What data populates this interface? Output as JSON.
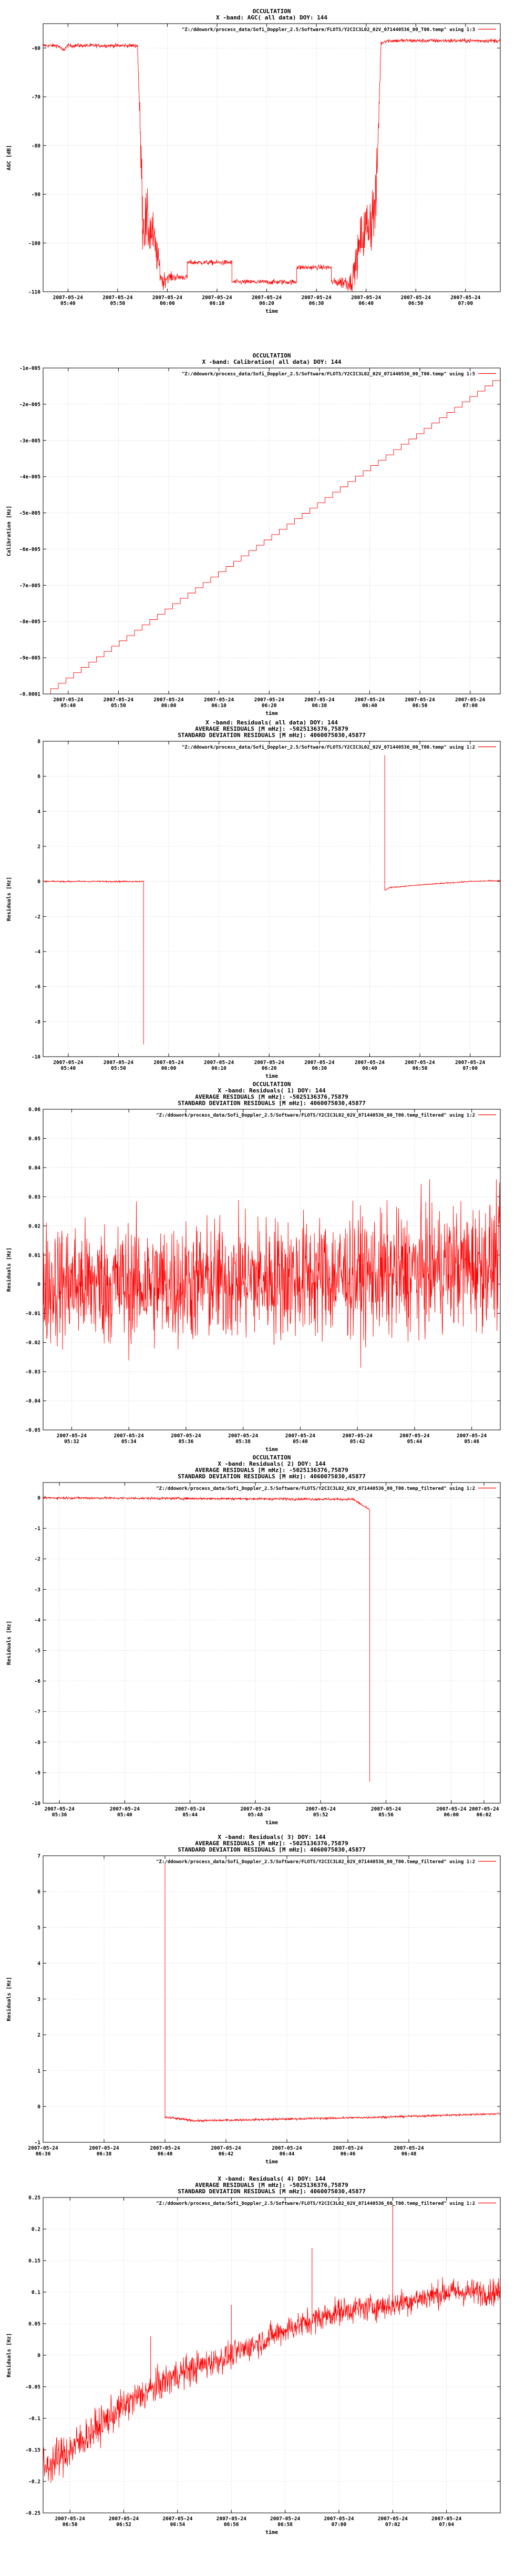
{
  "colors": {
    "series": "#ff0000",
    "axis": "#000000",
    "grid": "#9a9a9a",
    "background": "#ffffff"
  },
  "chart_data": [
    {
      "type": "line",
      "title_lines": [
        "OCCULTATION",
        "X -band: AGC( all data) DOY: 144"
      ],
      "legend": "\"Z:/ddowork/process_data/Sofi_Doppler_2.5/Software/FLOTS/Y2CIC3L02_02V_071440536_00_T00.temp\" using 1:3",
      "xlabel": "time",
      "ylabel": "AGC [dB]",
      "xlim": [
        "05:35",
        "07:07"
      ],
      "ylim": [
        -110,
        -55
      ],
      "yticks": [
        -60,
        -70,
        -80,
        -90,
        -100,
        -110
      ],
      "xticks": [
        {
          "at": "05:40",
          "lines": [
            "2007-05-24",
            "05:40"
          ]
        },
        {
          "at": "05:50",
          "lines": [
            "2007-05-24",
            "05:50"
          ]
        },
        {
          "at": "06:00",
          "lines": [
            "2007-05-24",
            "06:00"
          ]
        },
        {
          "at": "06:10",
          "lines": [
            "2007-05-24",
            "06:10"
          ]
        },
        {
          "at": "06:20",
          "lines": [
            "2007-05-24",
            "06:20"
          ]
        },
        {
          "at": "06:30",
          "lines": [
            "2007-05-24",
            "06:30"
          ]
        },
        {
          "at": "06:40",
          "lines": [
            "2007-05-24",
            "06:40"
          ]
        },
        {
          "at": "06:50",
          "lines": [
            "2007-05-24",
            "06:50"
          ]
        },
        {
          "at": "07:00",
          "lines": [
            "2007-05-24",
            "07:00"
          ]
        }
      ],
      "series": [
        {
          "x": [
            "05:35",
            "05:38",
            "05:39",
            "05:40",
            "05:45",
            "05:50",
            "05:54",
            "05:55",
            "05:55",
            "05:57",
            "05:58",
            "05:59",
            "06:00",
            "06:04",
            "06:04",
            "06:10",
            "06:13",
            "06:13",
            "06:20",
            "06:26",
            "06:26",
            "06:33",
            "06:33",
            "06:37",
            "06:38",
            "06:39",
            "06:41",
            "06:42",
            "06:43",
            "06:44",
            "06:50",
            "07:00",
            "07:07"
          ],
          "y": [
            -59.5,
            -59.5,
            -60.5,
            -59.5,
            -59.5,
            -59.5,
            -59.5,
            -92,
            -95,
            -98,
            -103,
            -108,
            -107,
            -107,
            -104,
            -104,
            -104,
            -108,
            -108,
            -108,
            -105,
            -105,
            -108,
            -108,
            -104,
            -99,
            -95,
            -92,
            -59,
            -58.5,
            -58.5,
            -58.5,
            -58.5
          ],
          "noise": [
            0.4,
            0.4,
            0.4,
            0.4,
            0.4,
            0.4,
            0.4,
            7,
            7,
            5,
            3,
            2,
            1,
            0.5,
            0.5,
            0.5,
            0.5,
            0.5,
            0.5,
            0.5,
            0.5,
            0.5,
            0.5,
            2,
            3,
            5,
            7,
            7,
            0.4,
            0.4,
            0.4,
            0.4,
            0.4
          ]
        }
      ]
    },
    {
      "type": "line",
      "title_lines": [
        "OCCULTATION",
        "X -band: Calibration( all data) DOY: 144"
      ],
      "legend": "\"Z:/ddowork/process_data/Sofi_Doppler_2.5/Software/FLOTS/Y2CIC3L02_02V_071440536_00_T00.temp\" using 1:5",
      "xlabel": "time",
      "ylabel": "Calibration [Hz]",
      "xlim": [
        "05:35",
        "07:06"
      ],
      "ylim": [
        -0.0001,
        -1e-05
      ],
      "yticks": [
        {
          "v": -1e-05,
          "label": "-1e-005"
        },
        {
          "v": -2e-05,
          "label": "-2e-005"
        },
        {
          "v": -3e-05,
          "label": "-3e-005"
        },
        {
          "v": -4e-05,
          "label": "-4e-005"
        },
        {
          "v": -5e-05,
          "label": "-5e-005"
        },
        {
          "v": -6e-05,
          "label": "-6e-005"
        },
        {
          "v": -7e-05,
          "label": "-7e-005"
        },
        {
          "v": -8e-05,
          "label": "-8e-005"
        },
        {
          "v": -9e-05,
          "label": "-9e-005"
        },
        {
          "v": -0.0001,
          "label": "-0.0001"
        }
      ],
      "xticks": [
        {
          "at": "05:40",
          "lines": [
            "2007-05-24",
            "05:40"
          ]
        },
        {
          "at": "05:50",
          "lines": [
            "2007-05-24",
            "05:50"
          ]
        },
        {
          "at": "06:00",
          "lines": [
            "2007-05-24",
            "06:00"
          ]
        },
        {
          "at": "06:10",
          "lines": [
            "2007-05-24",
            "06:10"
          ]
        },
        {
          "at": "06:20",
          "lines": [
            "2007-05-24",
            "06:20"
          ]
        },
        {
          "at": "06:30",
          "lines": [
            "2007-05-24",
            "06:30"
          ]
        },
        {
          "at": "06:40",
          "lines": [
            "2007-05-24",
            "06:40"
          ]
        },
        {
          "at": "06:50",
          "lines": [
            "2007-05-24",
            "06:50"
          ]
        },
        {
          "at": "07:00",
          "lines": [
            "2007-05-24",
            "07:00"
          ]
        }
      ],
      "series": [
        {
          "x": [
            "05:35",
            "07:06"
          ],
          "y": [
            -0.0001,
            -1.2e-05
          ],
          "steps": 60
        }
      ]
    },
    {
      "type": "line",
      "title_lines": [
        "X -band: Residuals( all data) DOY: 144",
        "AVERAGE RESIDUALS [M mHz]: -5025136376,75879",
        "STANDARD DEVIATION RESIDUALS [M mHz]: 4060075030,45877"
      ],
      "legend": "\"Z:/ddowork/process_data/Sofi_Doppler_2.5/Software/FLOTS/Y2CIC3L02_02V_071440536_00_T00.temp\" using 1:2",
      "xlabel": "time",
      "ylabel": "Residuals [Hz]",
      "xlim": [
        "05:35",
        "07:06"
      ],
      "ylim": [
        -10,
        8
      ],
      "yticks": [
        8,
        6,
        4,
        2,
        0,
        -2,
        -4,
        -6,
        -8,
        -10
      ],
      "xticks": [
        {
          "at": "05:40",
          "lines": [
            "2007-05-24",
            "05:40"
          ]
        },
        {
          "at": "05:50",
          "lines": [
            "2007-05-24",
            "05:50"
          ]
        },
        {
          "at": "06:00",
          "lines": [
            "2007-05-24",
            "06:00"
          ]
        },
        {
          "at": "06:10",
          "lines": [
            "2007-05-24",
            "06:10"
          ]
        },
        {
          "at": "06:20",
          "lines": [
            "2007-05-24",
            "06:20"
          ]
        },
        {
          "at": "06:30",
          "lines": [
            "2007-05-24",
            "06:30"
          ]
        },
        {
          "at": "06:40",
          "lines": [
            "2007-05-24",
            "06:40"
          ]
        },
        {
          "at": "06:50",
          "lines": [
            "2007-05-24",
            "06:50"
          ]
        },
        {
          "at": "07:00",
          "lines": [
            "2007-05-24",
            "07:00"
          ]
        }
      ],
      "series": [
        {
          "x": [
            "05:35",
            "05:55",
            "05:55"
          ],
          "y": [
            0,
            0,
            -9.3
          ],
          "noise": [
            0.04,
            0.04,
            0
          ]
        },
        {
          "x": [
            "06:43",
            "06:43",
            "06:44",
            "06:50",
            "07:00",
            "07:06"
          ],
          "y": [
            7.2,
            -0.5,
            -0.35,
            -0.2,
            0,
            0.05
          ],
          "noise": [
            0,
            0.03,
            0.03,
            0.03,
            0.03,
            0.03
          ]
        }
      ]
    },
    {
      "type": "line",
      "title_lines": [
        "OCCULTATION",
        "X -band: Residuals( 1) DOY: 144",
        "AVERAGE RESIDUALS [M mHz]: -5025136376,75879",
        "STANDARD DEVIATION RESIDUALS [M mHz]: 4060075030,45877"
      ],
      "legend": "\"Z:/ddowork/process_data/Sofi_Doppler_2.5/Software/FLOTS/Y2CIC3L02_02V_071440536_00_T00.temp_filtered\" using 1:2",
      "xlabel": "time",
      "ylabel": "Residuals [Hz]",
      "xlim": [
        "05:31",
        "05:47"
      ],
      "ylim": [
        -0.05,
        0.06
      ],
      "yticks": [
        0.06,
        0.05,
        0.04,
        0.03,
        0.02,
        0.01,
        0,
        -0.01,
        -0.02,
        -0.03,
        -0.04,
        -0.05
      ],
      "xticks": [
        {
          "at": "05:32",
          "lines": [
            "2007-05-24",
            "05:32"
          ]
        },
        {
          "at": "05:34",
          "lines": [
            "2007-05-24",
            "05:34"
          ]
        },
        {
          "at": "05:36",
          "lines": [
            "2007-05-24",
            "05:36"
          ]
        },
        {
          "at": "05:38",
          "lines": [
            "2007-05-24",
            "05:38"
          ]
        },
        {
          "at": "05:40",
          "lines": [
            "2007-05-24",
            "05:40"
          ]
        },
        {
          "at": "05:42",
          "lines": [
            "2007-05-24",
            "05:42"
          ]
        },
        {
          "at": "05:44",
          "lines": [
            "2007-05-24",
            "05:44"
          ]
        },
        {
          "at": "05:46",
          "lines": [
            "2007-05-24",
            "05:46"
          ]
        }
      ],
      "series": [
        {
          "x": [
            "05:31",
            "05:35",
            "05:39",
            "05:43",
            "05:47"
          ],
          "y": [
            0,
            0,
            0.002,
            0.003,
            0.008
          ],
          "noise": [
            0.02,
            0.02,
            0.02,
            0.02,
            0.02
          ]
        }
      ]
    },
    {
      "type": "line",
      "title_lines": [
        "OCCULTATION",
        "X -band: Residuals( 2) DOY: 144",
        "AVERAGE RESIDUALS [M mHz]: -5025136376,75879",
        "STANDARD DEVIATION RESIDUALS [M mHz]: 4060075030,45877"
      ],
      "legend": "\"Z:/ddowork/process_data/Sofi_Doppler_2.5/Software/FLOTS/Y2CIC3L02_02V_071440536_00_T00.temp_filtered\" using 1:2",
      "xlabel": "time",
      "ylabel": "Residuals [Hz]",
      "xlim": [
        "05:35",
        "06:03"
      ],
      "ylim": [
        -10,
        0.5
      ],
      "yticks": [
        0,
        -1,
        -2,
        -3,
        -4,
        -5,
        -6,
        -7,
        -8,
        -9,
        -10
      ],
      "xticks": [
        {
          "at": "05:36",
          "lines": [
            "2007-05-24",
            "05:36"
          ]
        },
        {
          "at": "05:40",
          "lines": [
            "2007-05-24",
            "05:40"
          ]
        },
        {
          "at": "05:44",
          "lines": [
            "2007-05-24",
            "05:44"
          ]
        },
        {
          "at": "05:48",
          "lines": [
            "2007-05-24",
            "05:48"
          ]
        },
        {
          "at": "05:52",
          "lines": [
            "2007-05-24",
            "05:52"
          ]
        },
        {
          "at": "05:56",
          "lines": [
            "2007-05-24",
            "05:56"
          ]
        },
        {
          "at": "06:00",
          "lines": [
            "2007-05-24",
            "06:00"
          ]
        },
        {
          "at": "06:02",
          "lines": [
            "2007-05-24",
            "06:02"
          ]
        }
      ],
      "series": [
        {
          "x": [
            "05:35",
            "05:54",
            "05:55",
            "05:55"
          ],
          "y": [
            0,
            -0.05,
            -0.4,
            -9.3
          ],
          "noise": [
            0.04,
            0.04,
            0.04,
            0
          ]
        }
      ]
    },
    {
      "type": "line",
      "title_lines": [
        "X -band: Residuals( 3) DOY: 144",
        "AVERAGE RESIDUALS [M mHz]: -5025136376,75879",
        "STANDARD DEVIATION RESIDUALS [M mHz]: 4060075030,45877"
      ],
      "legend": "\"Z:/ddowork/process_data/Sofi_Doppler_2.5/Software/FLOTS/Y2CIC3L02_02V_071440536_00_T00.temp_filtered\" using 1:2",
      "xlabel": "time",
      "ylabel": "Residuals [Hz]",
      "xlim": [
        "06:36",
        "06:51"
      ],
      "ylim": [
        -1,
        7
      ],
      "yticks": [
        7,
        6,
        5,
        4,
        3,
        2,
        1,
        0,
        -1
      ],
      "xticks": [
        {
          "at": "06:36",
          "lines": [
            "2007-05-24",
            "06:36"
          ]
        },
        {
          "at": "06:38",
          "lines": [
            "2007-05-24",
            "06:38"
          ]
        },
        {
          "at": "06:40",
          "lines": [
            "2007-05-24",
            "06:40"
          ]
        },
        {
          "at": "06:42",
          "lines": [
            "2007-05-24",
            "06:42"
          ]
        },
        {
          "at": "06:44",
          "lines": [
            "2007-05-24",
            "06:44"
          ]
        },
        {
          "at": "06:46",
          "lines": [
            "2007-05-24",
            "06:46"
          ]
        },
        {
          "at": "06:48",
          "lines": [
            "2007-05-24",
            "06:48"
          ]
        }
      ],
      "series": [
        {
          "x": [
            "06:40",
            "06:40",
            "06:41",
            "06:44",
            "06:47",
            "06:51"
          ],
          "y": [
            6.8,
            -0.3,
            -0.4,
            -0.35,
            -0.3,
            -0.2
          ],
          "noise": [
            0,
            0.04,
            0.03,
            0.03,
            0.03,
            0.03
          ]
        }
      ]
    },
    {
      "type": "line",
      "title_lines": [
        "X -band: Residuals( 4) DOY: 144",
        "AVERAGE RESIDUALS [M mHz]: -5025136376,75879",
        "STANDARD DEVIATION RESIDUALS [M mHz]: 4060075030,45877"
      ],
      "legend": "\"Z:/ddowork/process_data/Sofi_Doppler_2.5/Software/FLOTS/Y2CIC3L02_02V_071440536_00_T00.temp_filtered\" using 1:2",
      "xlabel": "time",
      "ylabel": "Residuals [Hz]",
      "xlim": [
        "06:49",
        "07:06"
      ],
      "ylim": [
        -0.25,
        0.25
      ],
      "yticks": [
        0.25,
        0.2,
        0.15,
        0.1,
        0.05,
        0,
        -0.05,
        -0.1,
        -0.15,
        -0.2,
        -0.25
      ],
      "xticks": [
        {
          "at": "06:50",
          "lines": [
            "2007-05-24",
            "06:50"
          ]
        },
        {
          "at": "06:52",
          "lines": [
            "2007-05-24",
            "06:52"
          ]
        },
        {
          "at": "06:54",
          "lines": [
            "2007-05-24",
            "06:54"
          ]
        },
        {
          "at": "06:56",
          "lines": [
            "2007-05-24",
            "06:56"
          ]
        },
        {
          "at": "06:58",
          "lines": [
            "2007-05-24",
            "06:58"
          ]
        },
        {
          "at": "07:00",
          "lines": [
            "2007-05-24",
            "07:00"
          ]
        },
        {
          "at": "07:02",
          "lines": [
            "2007-05-24",
            "07:02"
          ]
        },
        {
          "at": "07:04",
          "lines": [
            "2007-05-24",
            "07:04"
          ]
        }
      ],
      "series": [
        {
          "x": [
            "06:49",
            "06:50",
            "06:52",
            "06:54",
            "06:56",
            "06:58",
            "07:00",
            "07:02",
            "07:04",
            "07:06"
          ],
          "y": [
            -0.18,
            -0.15,
            -0.08,
            -0.03,
            0.0,
            0.04,
            0.07,
            0.08,
            0.1,
            0.1
          ],
          "noise": [
            0.03,
            0.03,
            0.025,
            0.025,
            0.02,
            0.02,
            0.02,
            0.02,
            0.02,
            0.02
          ],
          "spikes": [
            {
              "x": "06:53",
              "y": 0.03
            },
            {
              "x": "06:56",
              "y": 0.08
            },
            {
              "x": "06:59",
              "y": 0.17
            },
            {
              "x": "07:02",
              "y": 0.24
            }
          ]
        }
      ]
    }
  ]
}
